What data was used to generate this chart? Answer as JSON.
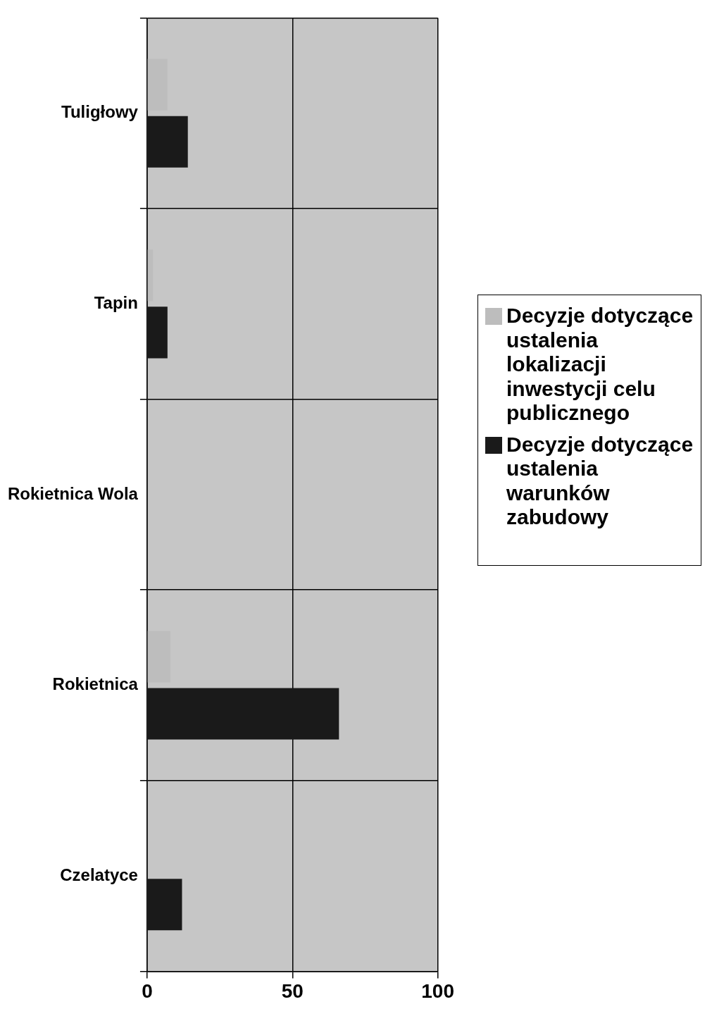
{
  "chart_data": {
    "type": "bar",
    "orientation": "horizontal",
    "categories": [
      "Tuligłowy",
      "Tapin",
      "Rokietnica Wola",
      "Rokietnica",
      "Czelatyce"
    ],
    "series": [
      {
        "name": "Decyzje dotyczące ustalenia lokalizacji inwestycji celu publicznego",
        "color": "#bdbdbd",
        "values": [
          7,
          2,
          0,
          8,
          0
        ]
      },
      {
        "name": "Decyzje dotyczące ustalenia warunków zabudowy",
        "color": "#1a1a1a",
        "values": [
          14,
          7,
          0,
          66,
          12
        ]
      }
    ],
    "xlim": [
      0,
      100
    ],
    "xticks": [
      0,
      50,
      100
    ],
    "grid": true,
    "legend": "right"
  }
}
